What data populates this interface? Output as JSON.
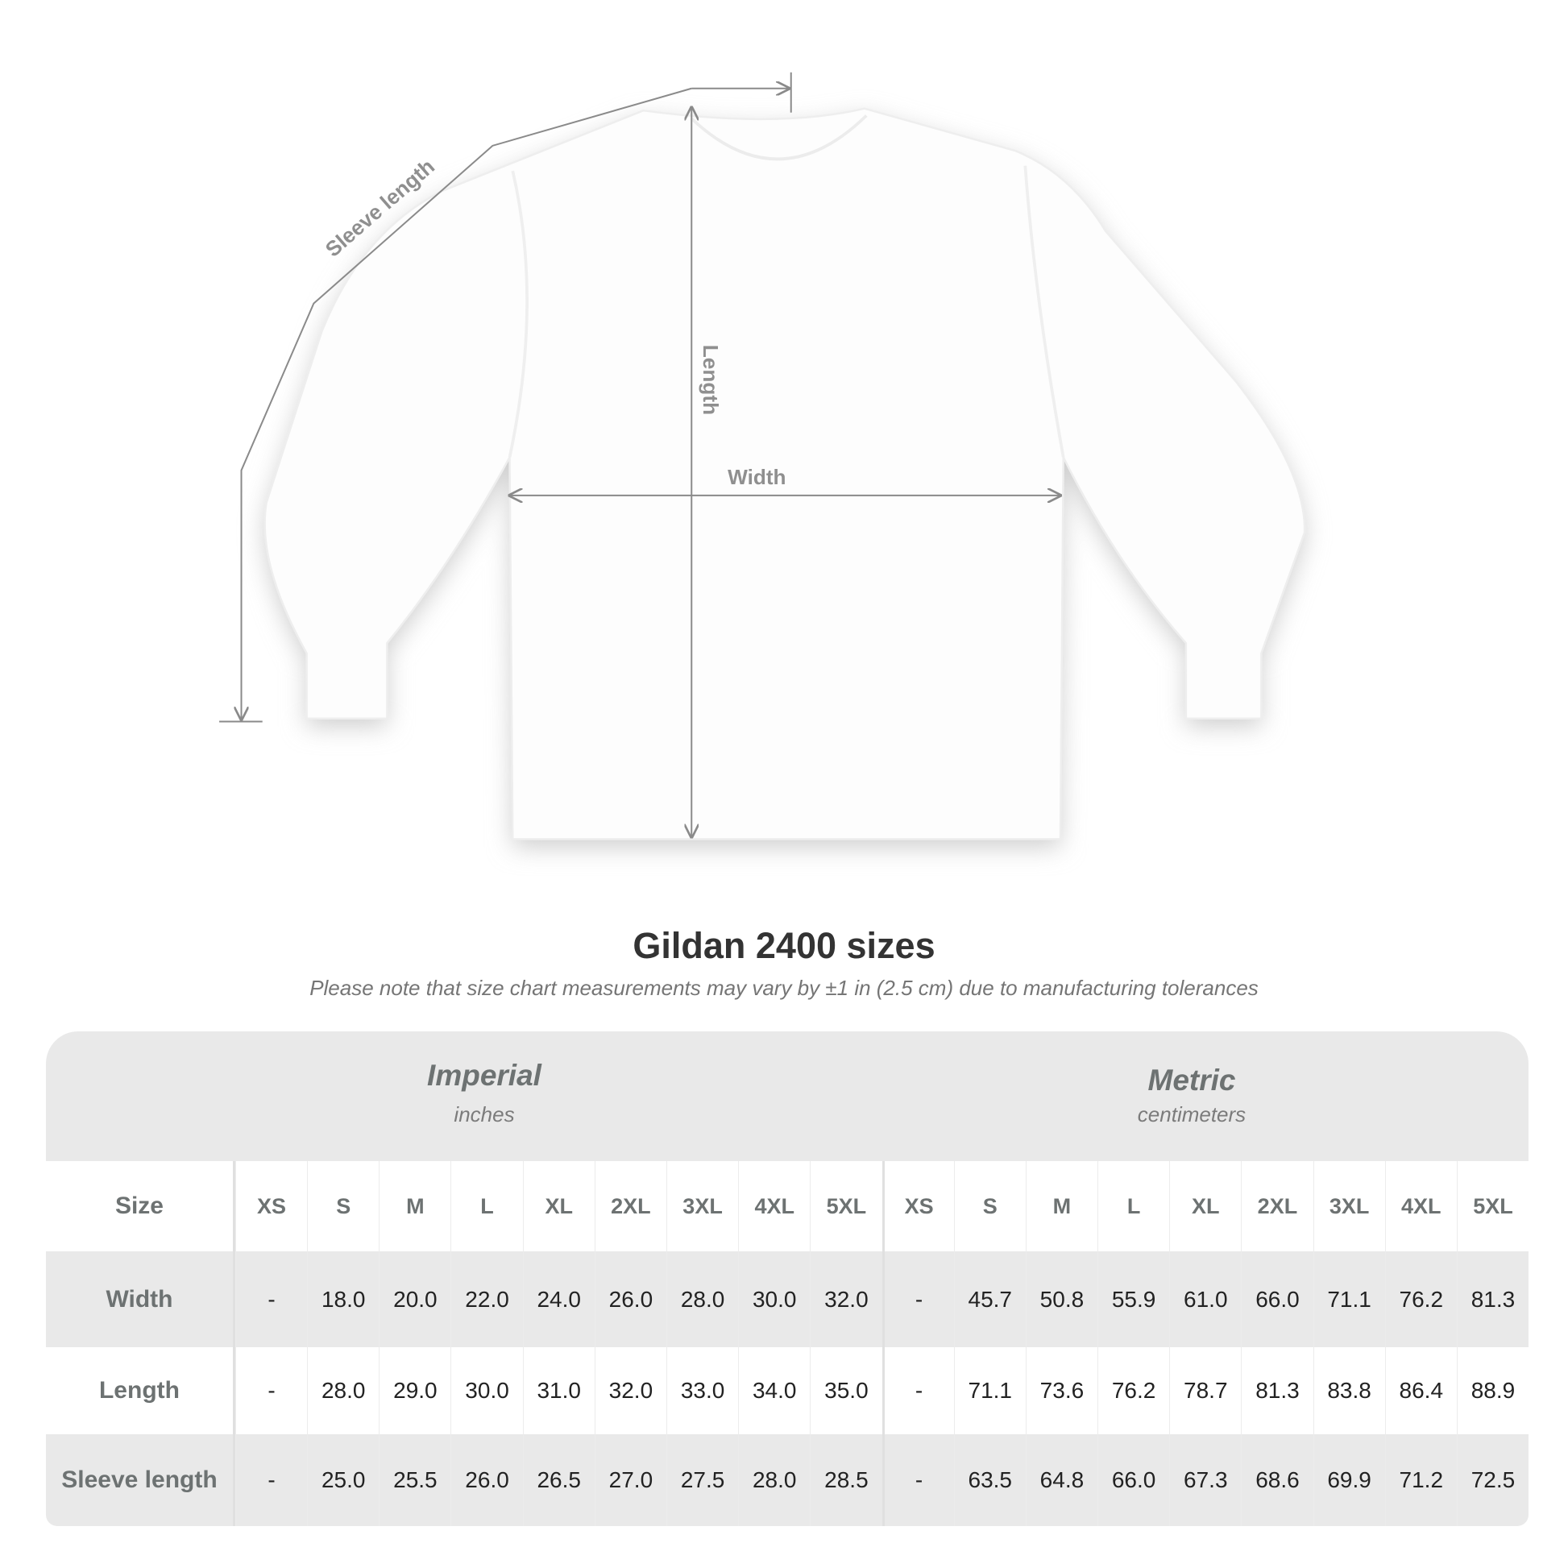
{
  "diagram": {
    "labels": {
      "sleeve_length": "Sleeve length",
      "length": "Length",
      "width": "Width"
    }
  },
  "title": "Gildan 2400 sizes",
  "subtitle": "Please note that size chart measurements may vary by ±1 in (2.5 cm) due to manufacturing tolerances",
  "table": {
    "imperial": {
      "title": "Imperial",
      "unit": "inches"
    },
    "metric": {
      "title": "Metric",
      "unit": "centimeters"
    },
    "size_label": "Size",
    "sizes": [
      "XS",
      "S",
      "M",
      "L",
      "XL",
      "2XL",
      "3XL",
      "4XL",
      "5XL"
    ],
    "rows": [
      {
        "label": "Width",
        "imperial": [
          "-",
          "18.0",
          "20.0",
          "22.0",
          "24.0",
          "26.0",
          "28.0",
          "30.0",
          "32.0"
        ],
        "metric": [
          "-",
          "45.7",
          "50.8",
          "55.9",
          "61.0",
          "66.0",
          "71.1",
          "76.2",
          "81.3"
        ]
      },
      {
        "label": "Length",
        "imperial": [
          "-",
          "28.0",
          "29.0",
          "30.0",
          "31.0",
          "32.0",
          "33.0",
          "34.0",
          "35.0"
        ],
        "metric": [
          "-",
          "71.1",
          "73.6",
          "76.2",
          "78.7",
          "81.3",
          "83.8",
          "86.4",
          "88.9"
        ]
      },
      {
        "label": "Sleeve length",
        "imperial": [
          "-",
          "25.0",
          "25.5",
          "26.0",
          "26.5",
          "27.0",
          "27.5",
          "28.0",
          "28.5"
        ],
        "metric": [
          "-",
          "63.5",
          "64.8",
          "66.0",
          "67.3",
          "68.6",
          "69.9",
          "71.2",
          "72.5"
        ]
      }
    ]
  }
}
